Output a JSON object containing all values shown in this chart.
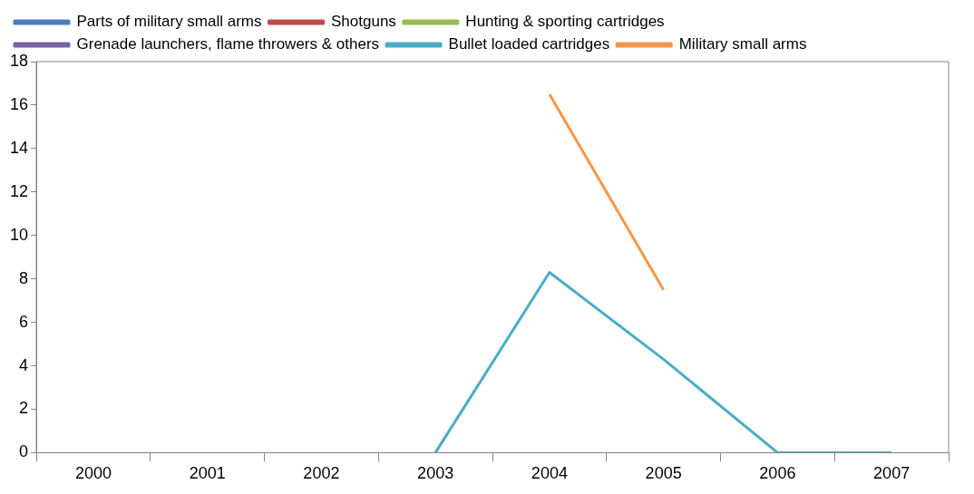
{
  "chart_data": {
    "type": "line",
    "categories": [
      "2000",
      "2001",
      "2002",
      "2003",
      "2004",
      "2005",
      "2006",
      "2007"
    ],
    "series": [
      {
        "name": "Parts of military small arms",
        "color": "#4a7ebb",
        "values": [
          null,
          null,
          null,
          null,
          null,
          null,
          null,
          null
        ]
      },
      {
        "name": "Shotguns",
        "color": "#be4b48",
        "values": [
          null,
          null,
          null,
          null,
          null,
          null,
          null,
          null
        ]
      },
      {
        "name": "Hunting & sporting cartridges",
        "color": "#98b954",
        "values": [
          null,
          null,
          null,
          null,
          null,
          null,
          null,
          null
        ]
      },
      {
        "name": "Grenade launchers, flame throwers & others",
        "color": "#7d60a0",
        "values": [
          null,
          null,
          null,
          null,
          null,
          null,
          null,
          null
        ]
      },
      {
        "name": "Bullet loaded cartridges",
        "color": "#4bacc6",
        "values": [
          null,
          null,
          null,
          0,
          8.3,
          4.3,
          0,
          0
        ]
      },
      {
        "name": "Military small arms",
        "color": "#f79646",
        "values": [
          null,
          null,
          null,
          null,
          16.5,
          7.5,
          null,
          null
        ]
      }
    ],
    "ylim": [
      0,
      18
    ],
    "yticks": [
      0,
      2,
      4,
      6,
      8,
      10,
      12,
      14,
      16,
      18
    ],
    "grid": false,
    "legend": "top",
    "marker": "none",
    "line_style": "solid"
  }
}
